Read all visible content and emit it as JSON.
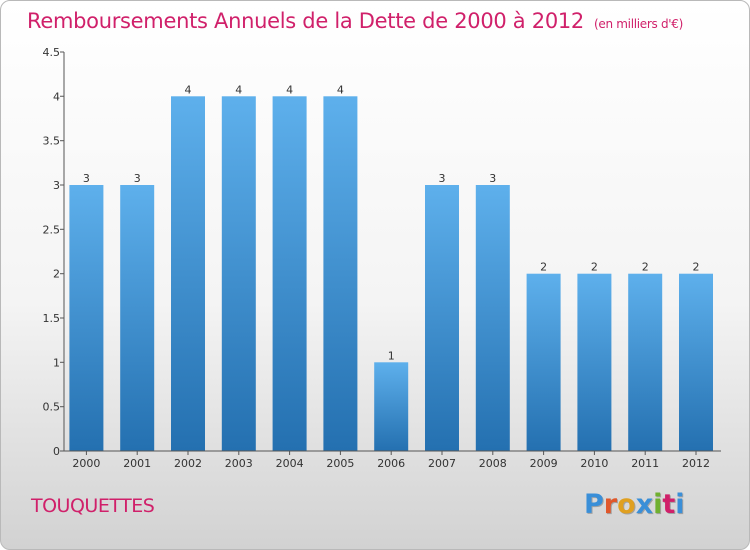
{
  "header": {
    "title": "Remboursements Annuels de la Dette de 2000 à 2012",
    "unit": "(en milliers d'€)"
  },
  "footer": {
    "commune": "TOUQUETTES",
    "logo_letters": [
      "P",
      "r",
      "o",
      "x",
      "i",
      "t",
      "i"
    ],
    "logo_colors": [
      "#3a8fd8",
      "#e0572a",
      "#e0a020",
      "#3a8fd8",
      "#70b030",
      "#d0206a",
      "#3a8fd8"
    ]
  },
  "colors": {
    "bar_light": "#5eb0ec",
    "bar_dark": "#2470b0",
    "title": "#d0206a",
    "axis": "#555555"
  },
  "chart_data": {
    "type": "bar",
    "title": "Remboursements Annuels de la Dette de 2000 à 2012",
    "xlabel": "",
    "ylabel": "",
    "ylim": [
      0,
      4.5
    ],
    "yticks": [
      0,
      0.5,
      1,
      1.5,
      2,
      2.5,
      3,
      3.5,
      4,
      4.5
    ],
    "ytick_labels": [
      "0",
      "0.5",
      "1",
      "1.5",
      "2",
      "2.5",
      "3",
      "3.5",
      "4",
      "4.5"
    ],
    "grid": false,
    "categories": [
      "2000",
      "2001",
      "2002",
      "2003",
      "2004",
      "2005",
      "2006",
      "2007",
      "2008",
      "2009",
      "2010",
      "2011",
      "2012"
    ],
    "values": [
      3,
      3,
      4,
      4,
      4,
      4,
      1,
      3,
      3,
      2,
      2,
      2,
      2
    ],
    "data_labels": [
      "3",
      "3",
      "4",
      "4",
      "4",
      "4",
      "1",
      "3",
      "3",
      "2",
      "2",
      "2",
      "2"
    ]
  }
}
